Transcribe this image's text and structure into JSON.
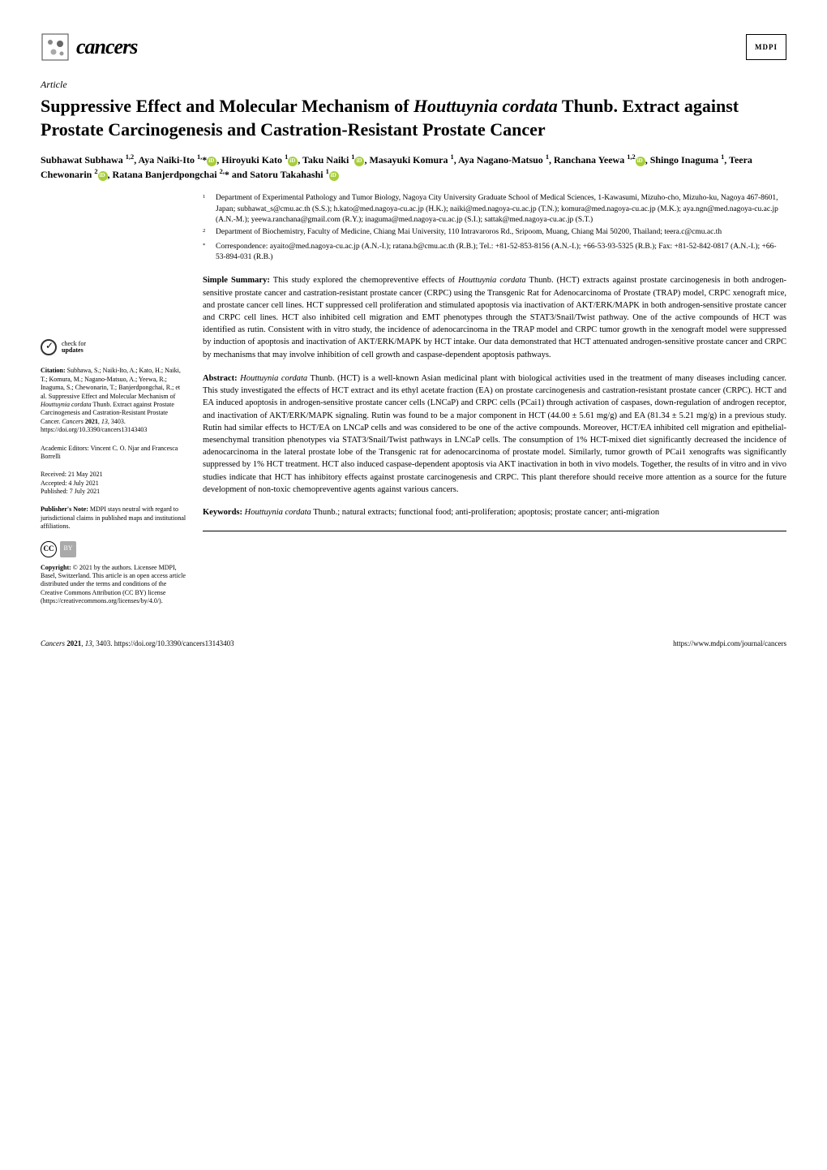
{
  "journal": {
    "name": "cancers",
    "publisher_logo": "MDPI"
  },
  "article": {
    "type": "Article",
    "title_html": "Suppressive Effect and Molecular Mechanism of <i>Houttuynia cordata</i> Thunb. Extract against Prostate Carcinogenesis and Castration-Resistant Prostate Cancer",
    "authors_html": "Subhawat Subhawa <sup>1,2</sup>, Aya Naiki-Ito <sup>1,</sup>*<span class='orcid'></span>, Hiroyuki Kato <sup>1</sup><span class='orcid'></span>, Taku Naiki <sup>1</sup><span class='orcid'></span>, Masayuki Komura <sup>1</sup>, Aya Nagano-Matsuo <sup>1</sup>, Ranchana Yeewa <sup>1,2</sup><span class='orcid'></span>, Shingo Inaguma <sup>1</sup>, Teera Chewonarin <sup>2</sup><span class='orcid'></span>, Ratana Banjerdpongchai <sup>2,</sup>* and Satoru Takahashi <sup>1</sup><span class='orcid'></span>"
  },
  "affiliations": [
    {
      "num": "1",
      "text": "Department of Experimental Pathology and Tumor Biology, Nagoya City University Graduate School of Medical Sciences, 1-Kawasumi, Mizuho-cho, Mizuho-ku, Nagoya 467-8601, Japan; subhawat_s@cmu.ac.th (S.S.); h.kato@med.nagoya-cu.ac.jp (H.K.); naiki@med.nagoya-cu.ac.jp (T.N.); komura@med.nagoya-cu.ac.jp (M.K.); aya.ngn@med.nagoya-cu.ac.jp (A.N.-M.); yeewa.ranchana@gmail.com (R.Y.); inaguma@med.nagoya-cu.ac.jp (S.I.); sattak@med.nagoya-cu.ac.jp (S.T.)"
    },
    {
      "num": "2",
      "text": "Department of Biochemistry, Faculty of Medicine, Chiang Mai University, 110 Intravaroros Rd., Sripoom, Muang, Chiang Mai 50200, Thailand; teera.c@cmu.ac.th"
    },
    {
      "num": "*",
      "text": "Correspondence: ayaito@med.nagoya-cu.ac.jp (A.N.-I.); ratana.b@cmu.ac.th (R.B.); Tel.: +81-52-853-8156 (A.N.-I.); +66-53-93-5325 (R.B.); Fax: +81-52-842-0817 (A.N.-I.); +66-53-894-031 (R.B.)"
    }
  ],
  "simple_summary": {
    "label": "Simple Summary:",
    "text_html": "This study explored the chemopreventive effects of <i>Houttuynia cordata</i> Thunb. (HCT) extracts against prostate carcinogenesis in both androgen-sensitive prostate cancer and castration-resistant prostate cancer (CRPC) using the Transgenic Rat for Adenocarcinoma of Prostate (TRAP) model, CRPC xenograft mice, and prostate cancer cell lines. HCT suppressed cell proliferation and stimulated apoptosis via inactivation of AKT/ERK/MAPK in both androgen-sensitive prostate cancer and CRPC cell lines. HCT also inhibited cell migration and EMT phenotypes through the STAT3/Snail/Twist pathway. One of the active compounds of HCT was identified as rutin. Consistent with in vitro study, the incidence of adenocarcinoma in the TRAP model and CRPC tumor growth in the xenograft model were suppressed by induction of apoptosis and inactivation of AKT/ERK/MAPK by HCT intake. Our data demonstrated that HCT attenuated androgen-sensitive prostate cancer and CRPC by mechanisms that may involve inhibition of cell growth and caspase-dependent apoptosis pathways."
  },
  "abstract": {
    "label": "Abstract:",
    "text_html": "<i>Houttuynia cordata</i> Thunb. (HCT) is a well-known Asian medicinal plant with biological activities used in the treatment of many diseases including cancer. This study investigated the effects of HCT extract and its ethyl acetate fraction (EA) on prostate carcinogenesis and castration-resistant prostate cancer (CRPC). HCT and EA induced apoptosis in androgen-sensitive prostate cancer cells (LNCaP) and CRPC cells (PCai1) through activation of caspases, down-regulation of androgen receptor, and inactivation of AKT/ERK/MAPK signaling. Rutin was found to be a major component in HCT (44.00 ± 5.61 mg/g) and EA (81.34 ± 5.21 mg/g) in a previous study. Rutin had similar effects to HCT/EA on LNCaP cells and was considered to be one of the active compounds. Moreover, HCT/EA inhibited cell migration and epithelial-mesenchymal transition phenotypes via STAT3/Snail/Twist pathways in LNCaP cells. The consumption of 1% HCT-mixed diet significantly decreased the incidence of adenocarcinoma in the lateral prostate lobe of the Transgenic rat for adenocarcinoma of prostate model. Similarly, tumor growth of PCai1 xenografts was significantly suppressed by 1% HCT treatment. HCT also induced caspase-dependent apoptosis via AKT inactivation in both in vivo models. Together, the results of in vitro and in vivo studies indicate that HCT has inhibitory effects against prostate carcinogenesis and CRPC. This plant therefore should receive more attention as a source for the future development of non-toxic chemopreventive agents against various cancers."
  },
  "keywords": {
    "label": "Keywords:",
    "text_html": "<i>Houttuynia cordata</i> Thunb.; natural extracts; functional food; anti-proliferation; apoptosis; prostate cancer; anti-migration"
  },
  "sidebar": {
    "updates_label": "check for",
    "updates_bold": "updates",
    "citation_label": "Citation:",
    "citation_text_html": "Subhawa, S.; Naiki-Ito, A.; Kato, H.; Naiki, T.; Komura, M.; Nagano-Matsuo, A.; Yeewa, R.; Inaguma, S.; Chewonarin, T.; Banjerdpongchai, R.; et al. Suppressive Effect and Molecular Mechanism of <i>Houttuynia cordata</i> Thunb. Extract against Prostate Carcinogenesis and Castration-Resistant Prostate Cancer. <i>Cancers</i> <b>2021</b>, <i>13</i>, 3403. https://doi.org/10.3390/cancers13143403",
    "editors_label": "Academic Editors:",
    "editors_text": "Vincent C. O. Njar and Francesca Borrelli",
    "received": "Received: 21 May 2021",
    "accepted": "Accepted: 4 July 2021",
    "published": "Published: 7 July 2021",
    "pubnote_label": "Publisher's Note:",
    "pubnote_text": "MDPI stays neutral with regard to jurisdictional claims in published maps and institutional affiliations.",
    "copyright_label": "Copyright:",
    "copyright_text": "© 2021 by the authors. Licensee MDPI, Basel, Switzerland. This article is an open access article distributed under the terms and conditions of the Creative Commons Attribution (CC BY) license (https://creativecommons.org/licenses/by/4.0/)."
  },
  "footer": {
    "left_html": "<i>Cancers</i> <b>2021</b>, <i>13</i>, 3403. https://doi.org/10.3390/cancers13143403",
    "right": "https://www.mdpi.com/journal/cancers"
  },
  "colors": {
    "orcid": "#a6ce39",
    "text": "#000000",
    "bg": "#ffffff"
  }
}
